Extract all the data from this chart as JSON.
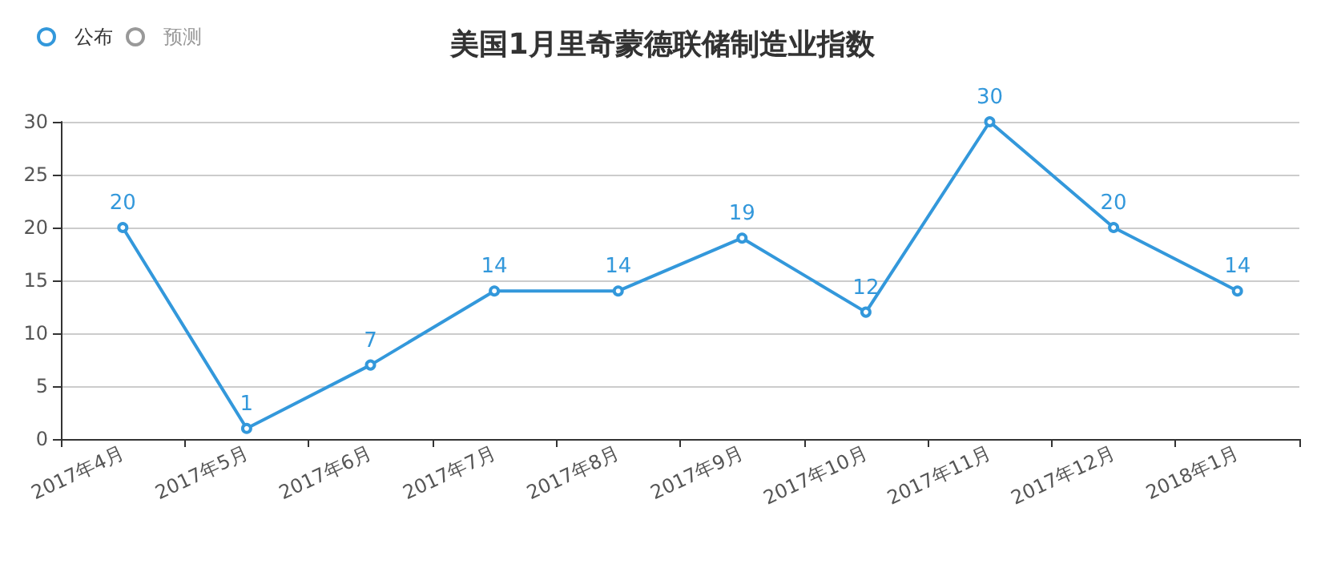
{
  "chart_data": {
    "type": "line",
    "title": "美国1月里奇蒙德联储制造业指数",
    "categories": [
      "2017年4月",
      "2017年5月",
      "2017年6月",
      "2017年7月",
      "2017年8月",
      "2017年9月",
      "2017年10月",
      "2017年11月",
      "2017年12月",
      "2018年1月"
    ],
    "series": [
      {
        "name": "公布",
        "color": "#3398db",
        "values": [
          20,
          1,
          7,
          14,
          14,
          19,
          12,
          30,
          20,
          14
        ]
      },
      {
        "name": "预测",
        "color": "#999999",
        "values": [
          null,
          null,
          null,
          null,
          null,
          null,
          null,
          null,
          null,
          null
        ]
      }
    ],
    "ylim": [
      0,
      30
    ],
    "yticks": [
      0,
      5,
      10,
      15,
      20,
      25,
      30
    ],
    "grid": "y",
    "legend": "top left",
    "marker": "circle",
    "line_style": "solid",
    "data_labels": true
  }
}
